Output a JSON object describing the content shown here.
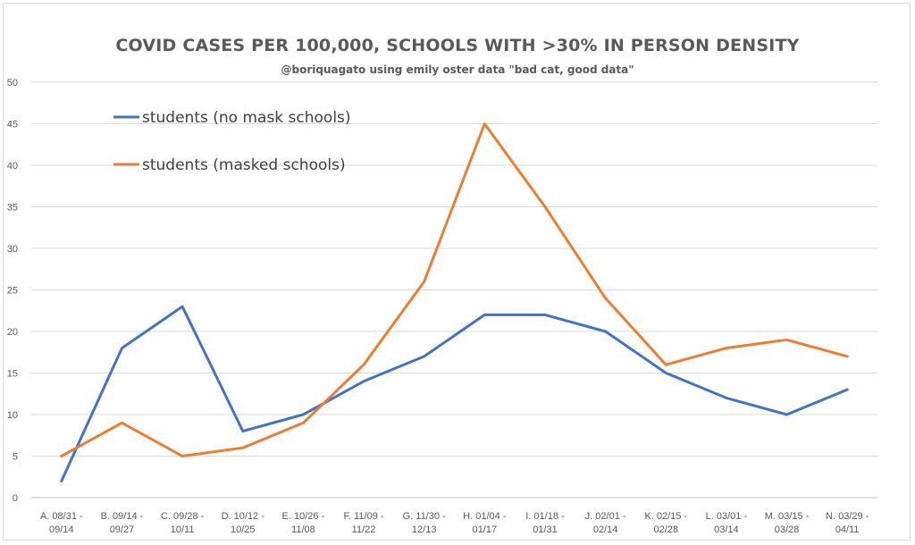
{
  "chart_data": {
    "type": "line",
    "title": "COVID CASES PER 100,000, SCHOOLS WITH >30% IN PERSON DENSITY",
    "subtitle": "@boriquagato using emily oster data \"bad cat, good data\"",
    "categories": [
      [
        "A. 08/31 -",
        "09/14"
      ],
      [
        "B. 09/14 -",
        "09/27"
      ],
      [
        "C. 09/28 -",
        "10/11"
      ],
      [
        "D. 10/12 -",
        "10/25"
      ],
      [
        "E. 10/26 -",
        "11/08"
      ],
      [
        "F. 11/09 -",
        "11/22"
      ],
      [
        "G. 11/30 -",
        "12/13"
      ],
      [
        "H. 01/04 -",
        "01/17"
      ],
      [
        "I. 01/18 -",
        "01/31"
      ],
      [
        "J. 02/01 -",
        "02/14"
      ],
      [
        "K. 02/15 -",
        "02/28"
      ],
      [
        "L. 03/01 -",
        "03/14"
      ],
      [
        "M. 03/15 -",
        "03/28"
      ],
      [
        "N. 03/29 -",
        "04/11"
      ]
    ],
    "series": [
      {
        "name": "students (no mask schools)",
        "color": "#4472c4",
        "values": [
          2,
          18,
          23,
          8,
          10,
          14,
          17,
          22,
          22,
          20,
          15,
          12,
          10,
          13
        ]
      },
      {
        "name": "students (masked schools)",
        "color": "#ed7d31",
        "values": [
          5,
          9,
          5,
          6,
          9,
          16,
          26,
          45,
          35,
          24,
          16,
          18,
          19,
          17
        ]
      }
    ],
    "ylim": [
      0,
      50
    ],
    "yticks": [
      "0",
      "5",
      "10",
      "15",
      "20",
      "25",
      "30",
      "35",
      "40",
      "45",
      "50"
    ],
    "grid": true,
    "legend_position": "top-left"
  }
}
